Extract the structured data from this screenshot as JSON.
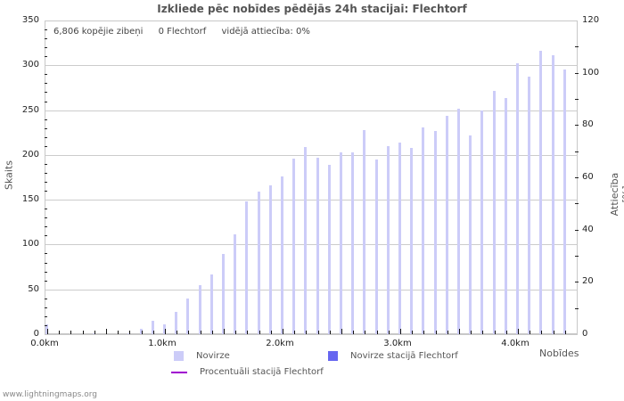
{
  "title": "Izkliede pēc nobīdes pēdējās 24h stacijai: Flechtorf",
  "stats": {
    "total": "6,806 kopējie zibeņi",
    "station": "0 Flechtorf",
    "ratio": "vidējā attiecība: 0%"
  },
  "axes": {
    "y_left_label": "Skaits",
    "y_right_label": "Attiecība [%]",
    "x_label": "Nobīdes",
    "y_left_ticks": [
      "0",
      "50",
      "100",
      "150",
      "200",
      "250",
      "300",
      "350"
    ],
    "y_right_ticks": [
      "0",
      "20",
      "40",
      "60",
      "80",
      "100",
      "120"
    ],
    "x_ticks": [
      "0.0km",
      "1.0km",
      "2.0km",
      "3.0km",
      "4.0km"
    ]
  },
  "legend": {
    "items": [
      {
        "label": "Novirze",
        "color": "#ccccf8"
      },
      {
        "label": "Novirze stacijā Flechtorf",
        "color": "#6666f0"
      },
      {
        "label": "Procentuāli stacijā Flechtorf",
        "color": "#a000d0"
      }
    ]
  },
  "footer": "www.lightningmaps.org",
  "chart_data": {
    "type": "bar",
    "title": "Izkliede pēc nobīdes pēdējās 24h stacijai: Flechtorf",
    "xlabel": "Nobīdes",
    "ylabel": "Skaits",
    "y2label": "Attiecība [%]",
    "ylim": [
      0,
      350
    ],
    "y2lim": [
      0,
      120
    ],
    "grid": true,
    "legend_position": "bottom",
    "categories": [
      "0.0",
      "0.1",
      "0.2",
      "0.3",
      "0.4",
      "0.5",
      "0.6",
      "0.7",
      "0.8",
      "0.9",
      "1.0",
      "1.1",
      "1.2",
      "1.3",
      "1.4",
      "1.5",
      "1.6",
      "1.7",
      "1.8",
      "1.9",
      "2.0",
      "2.1",
      "2.2",
      "2.3",
      "2.4",
      "2.5",
      "2.6",
      "2.7",
      "2.8",
      "2.9",
      "3.0",
      "3.1",
      "3.2",
      "3.3",
      "3.4",
      "3.5",
      "3.6",
      "3.7",
      "3.8",
      "3.9",
      "4.0",
      "4.1",
      "4.2",
      "4.3",
      "4.4"
    ],
    "series": [
      {
        "name": "Novirze",
        "values": [
          11,
          0,
          0,
          0,
          1,
          0,
          0,
          1,
          6,
          15,
          11,
          25,
          40,
          55,
          67,
          89,
          111,
          148,
          159,
          166,
          176,
          196,
          209,
          197,
          189,
          203,
          203,
          228,
          195,
          210,
          214,
          208,
          231,
          227,
          244,
          252,
          222,
          250,
          271,
          263,
          302,
          287,
          316,
          311,
          295
        ]
      },
      {
        "name": "Novirze stacijā Flechtorf",
        "values": [
          0,
          0,
          0,
          0,
          0,
          0,
          0,
          0,
          0,
          0,
          0,
          0,
          0,
          0,
          0,
          0,
          0,
          0,
          0,
          0,
          0,
          0,
          0,
          0,
          0,
          0,
          0,
          0,
          0,
          0,
          0,
          0,
          0,
          0,
          0,
          0,
          0,
          0,
          0,
          0,
          0,
          0,
          0,
          0,
          0
        ]
      },
      {
        "name": "Procentuāli stacijā Flechtorf",
        "values": [
          0,
          0,
          0,
          0,
          0,
          0,
          0,
          0,
          0,
          0,
          0,
          0,
          0,
          0,
          0,
          0,
          0,
          0,
          0,
          0,
          0,
          0,
          0,
          0,
          0,
          0,
          0,
          0,
          0,
          0,
          0,
          0,
          0,
          0,
          0,
          0,
          0,
          0,
          0,
          0,
          0,
          0,
          0,
          0,
          0
        ]
      }
    ],
    "annotations": [
      "6,806 kopējie zibeņi",
      "0 Flechtorf",
      "vidējā attiecība: 0%"
    ]
  }
}
